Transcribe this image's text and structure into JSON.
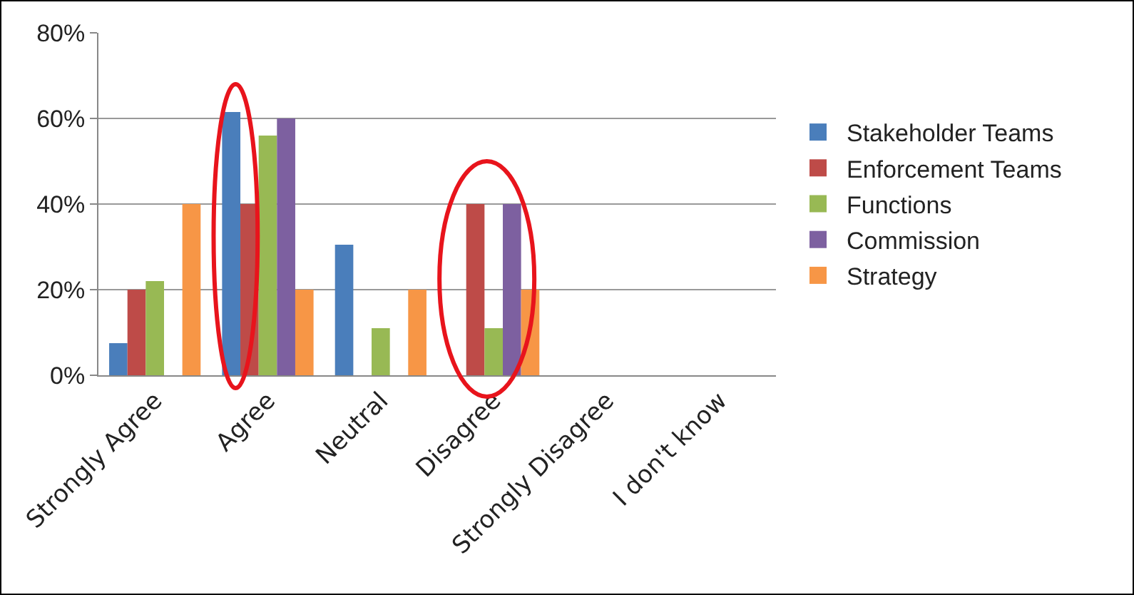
{
  "chart_data": {
    "type": "bar",
    "categories": [
      "Strongly Agree",
      "Agree",
      "Neutral",
      "Disagree",
      "Strongly Disagree",
      "I don't know"
    ],
    "series": [
      {
        "name": "Stakeholder Teams",
        "color": "#4a7ebb",
        "values": [
          7.5,
          61.5,
          30.5,
          0,
          0,
          0
        ]
      },
      {
        "name": "Enforcement Teams",
        "color": "#be4b48",
        "values": [
          20,
          40,
          0,
          40,
          0,
          0
        ]
      },
      {
        "name": "Functions",
        "color": "#98b954",
        "values": [
          22,
          56,
          11,
          11,
          0,
          0
        ]
      },
      {
        "name": "Commission",
        "color": "#7d60a0",
        "values": [
          0,
          60,
          0,
          40,
          0,
          0
        ]
      },
      {
        "name": "Strategy",
        "color": "#f79646",
        "values": [
          40,
          20,
          20,
          20,
          0,
          0
        ]
      }
    ],
    "ylim": [
      0,
      80
    ],
    "yticks": [
      {
        "value": 0,
        "label": "0%"
      },
      {
        "value": 20,
        "label": "20%"
      },
      {
        "value": 40,
        "label": "40%"
      },
      {
        "value": 60,
        "label": "60%"
      },
      {
        "value": 80,
        "label": "80%"
      }
    ],
    "grid": "y",
    "legend": "right"
  }
}
